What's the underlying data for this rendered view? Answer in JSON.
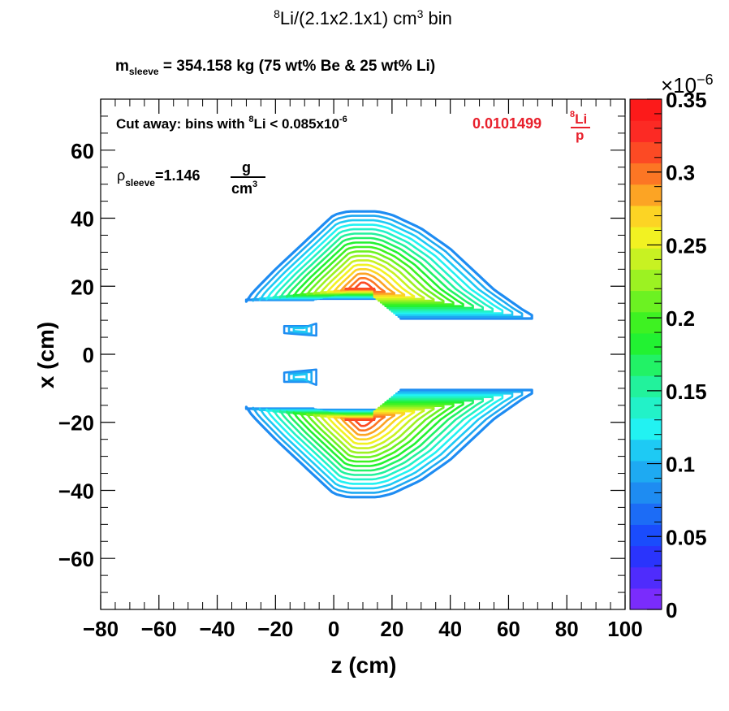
{
  "chart_data": {
    "type": "contour",
    "title": {
      "sup": "8",
      "main": "Li/(2.1x2.1x1) cm",
      "sup2": "3",
      "tail": " bin"
    },
    "subtitle": {
      "m": "m",
      "sub": "sleeve",
      "rest": " = 354.158 kg (75 wt% Be & 25 wt% Li)"
    },
    "annotations": {
      "cut": {
        "text1": "Cut away: bins with ",
        "sup": "8",
        "text2": "Li < 0.085x10",
        "exp": "-6"
      },
      "rho": {
        "rho": "ρ",
        "sub": "sleeve",
        "value": "=1.146",
        "num": "g",
        "den": "cm",
        "den_sup": "3"
      },
      "yield": {
        "value": "0.0101499",
        "num_sup": "8",
        "num": "Li",
        "den": "p",
        "color": "#e8202c"
      }
    },
    "xlabel": "z (cm)",
    "ylabel": "x (cm)",
    "xlim": [
      -80,
      100
    ],
    "ylim": [
      -75,
      75
    ],
    "xticks": [
      -80,
      -60,
      -40,
      -20,
      0,
      20,
      40,
      60,
      80,
      100
    ],
    "xtick_labels": [
      "−80",
      "−60",
      "−40",
      "−20",
      "0",
      "20",
      "40",
      "60",
      "80",
      "100"
    ],
    "yticks": [
      -60,
      -40,
      -20,
      0,
      20,
      40,
      60
    ],
    "ytick_labels": [
      "−60",
      "−40",
      "−20",
      "0",
      "20",
      "40",
      "60"
    ],
    "colorbar": {
      "min": 0,
      "max": 0.35,
      "exponent_label": "×10",
      "exponent": "−6",
      "ticks": [
        0,
        0.05,
        0.1,
        0.15,
        0.2,
        0.25,
        0.3,
        0.35
      ],
      "tick_labels": [
        "0",
        "0.05",
        "0.1",
        "0.15",
        "0.2",
        "0.25",
        "0.3",
        "0.35"
      ],
      "colors": [
        "#7a2cfc",
        "#4f2cfc",
        "#2a34fc",
        "#1a4cfc",
        "#1c6cf6",
        "#1e8cf2",
        "#1eaaf2",
        "#1ecaf4",
        "#22f2f2",
        "#22f2c8",
        "#22f29c",
        "#22f266",
        "#22f232",
        "#3ef222",
        "#6cf222",
        "#9cf222",
        "#c8f222",
        "#f2f222",
        "#fcd424",
        "#fca424",
        "#fc7624",
        "#fc4a24",
        "#fc2a24",
        "#fc1a1a"
      ]
    },
    "grid": false,
    "legend": "none",
    "contour_levels": [
      0.085,
      0.095,
      0.11,
      0.125,
      0.14,
      0.155,
      0.17,
      0.185,
      0.2,
      0.215,
      0.23,
      0.245,
      0.26,
      0.275,
      0.29,
      0.305,
      0.32
    ],
    "shape": {
      "inner_z": [
        -7,
        22
      ],
      "hot_spot_z": 10,
      "upper_outer_boundary_z": [
        -30,
        -28,
        -20,
        -10,
        -5,
        0,
        5,
        10,
        15,
        20,
        25,
        30,
        35,
        40,
        45,
        50,
        55,
        60,
        65,
        68
      ],
      "upper_outer_boundary_x": [
        15.5,
        18,
        25,
        33,
        37,
        41,
        42,
        42,
        42,
        41,
        39,
        37,
        34,
        31,
        27,
        23,
        19,
        16,
        13,
        11.5
      ],
      "notch_x": [
        16,
        18
      ],
      "step_x": [
        10.5,
        16
      ],
      "small_lobes": [
        {
          "z": [
            -19,
            -8
          ],
          "x": [
            5.5,
            9
          ],
          "peak": 0.11
        },
        {
          "z": [
            -19,
            -8
          ],
          "x": [
            4.5,
            9
          ],
          "peak": 0.11
        }
      ],
      "symmetric_about_x": 0
    }
  }
}
